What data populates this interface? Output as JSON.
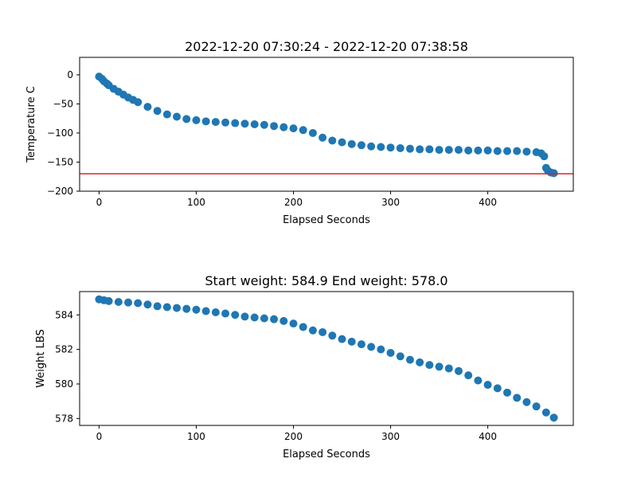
{
  "chart_data": [
    {
      "type": "scatter",
      "title": "2022-12-20 07:30:24 - 2022-12-20 07:38:58",
      "xlabel": "Elapsed Seconds",
      "ylabel": "Temperature C",
      "xlim": [
        -20,
        488
      ],
      "ylim": [
        -200,
        30
      ],
      "xticks": [
        0,
        100,
        200,
        300,
        400
      ],
      "yticks": [
        0,
        -50,
        -100,
        -150,
        -200
      ],
      "grid": false,
      "marker_color": "#1f77b4",
      "hline": {
        "y": -170,
        "color": "#d62728"
      },
      "series": [
        {
          "x": [
            0,
            3,
            5,
            8,
            10,
            15,
            20,
            25,
            30,
            35,
            40,
            50,
            60,
            70,
            80,
            90,
            100,
            110,
            120,
            130,
            140,
            150,
            160,
            170,
            180,
            190,
            200,
            210,
            220,
            230,
            240,
            250,
            260,
            270,
            280,
            290,
            300,
            310,
            320,
            330,
            340,
            350,
            360,
            370,
            380,
            390,
            400,
            410,
            420,
            430,
            440,
            450,
            455,
            458,
            460,
            462,
            465,
            468
          ],
          "y": [
            -3,
            -7,
            -11,
            -15,
            -18,
            -24,
            -29,
            -34,
            -39,
            -43,
            -47,
            -55,
            -62,
            -68,
            -72,
            -76,
            -78,
            -80,
            -81,
            -82,
            -83,
            -84,
            -85,
            -86,
            -88,
            -90,
            -92,
            -95,
            -100,
            -108,
            -113,
            -116,
            -119,
            -121,
            -123,
            -124,
            -125,
            -126,
            -127,
            -128,
            -128,
            -129,
            -129,
            -129,
            -130,
            -130,
            -130,
            -131,
            -131,
            -131,
            -132,
            -133,
            -135,
            -140,
            -160,
            -165,
            -168,
            -169
          ]
        }
      ]
    },
    {
      "type": "scatter",
      "title": "Start weight: 584.9 End weight: 578.0",
      "xlabel": "Elapsed Seconds",
      "ylabel": "Weight LBS",
      "xlim": [
        -20,
        488
      ],
      "ylim": [
        577.6,
        585.35
      ],
      "xticks": [
        0,
        100,
        200,
        300,
        400
      ],
      "yticks": [
        578,
        580,
        582,
        584
      ],
      "grid": false,
      "marker_color": "#1f77b4",
      "series": [
        {
          "x": [
            0,
            5,
            10,
            20,
            30,
            40,
            50,
            60,
            70,
            80,
            90,
            100,
            110,
            120,
            130,
            140,
            150,
            160,
            170,
            180,
            190,
            200,
            210,
            220,
            230,
            240,
            250,
            260,
            270,
            280,
            290,
            300,
            310,
            320,
            330,
            340,
            350,
            360,
            370,
            380,
            390,
            400,
            410,
            420,
            430,
            440,
            450,
            460,
            468
          ],
          "y": [
            584.9,
            584.85,
            584.8,
            584.75,
            584.72,
            584.68,
            584.6,
            584.5,
            584.45,
            584.4,
            584.35,
            584.3,
            584.22,
            584.15,
            584.08,
            584.0,
            583.9,
            583.85,
            583.8,
            583.75,
            583.65,
            583.5,
            583.3,
            583.1,
            583.0,
            582.8,
            582.6,
            582.45,
            582.3,
            582.15,
            582.0,
            581.8,
            581.6,
            581.4,
            581.25,
            581.1,
            581.0,
            580.9,
            580.75,
            580.5,
            580.2,
            579.95,
            579.75,
            579.5,
            579.2,
            578.95,
            578.7,
            578.35,
            578.05
          ]
        }
      ]
    }
  ]
}
